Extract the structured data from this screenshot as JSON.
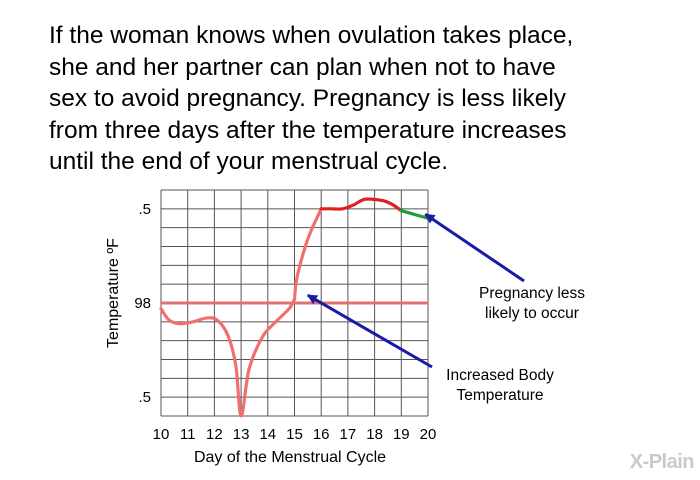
{
  "paragraph": {
    "line1": "If the woman knows when ovulation takes place,",
    "line2": "she and her partner can plan when not to have",
    "line3": "sex to avoid pregnancy. Pregnancy is less likely",
    "line4": "from three days after the temperature increases",
    "line5": "until the end of your menstrual cycle."
  },
  "chart_data": {
    "type": "line",
    "xlabel": "Day of the Menstrual Cycle",
    "ylabel": "Temperature ºF",
    "x_ticks": [
      "10",
      "11",
      "12",
      "13",
      "14",
      "15",
      "16",
      "17",
      "18",
      "19",
      "20"
    ],
    "y_ticks": [
      ".5",
      "98",
      ".5"
    ],
    "xlim": [
      10,
      20
    ],
    "ylim": [
      97.4,
      98.6
    ],
    "grid": true,
    "baseline": {
      "y": 98.0,
      "color": "#e07070"
    },
    "series": [
      {
        "segment": "before-increase",
        "color": "#f07070",
        "x": [
          10,
          10.3,
          10.7,
          11.2,
          11.7,
          12.1,
          12.5,
          12.8,
          13.0,
          13.3,
          13.8,
          14.3,
          14.8,
          15.0
        ],
        "y": [
          97.97,
          97.91,
          97.89,
          97.9,
          97.92,
          97.91,
          97.83,
          97.67,
          97.4,
          97.65,
          97.82,
          97.9,
          97.97,
          98.02
        ]
      },
      {
        "segment": "increased-body-temperature",
        "color": "#f07070",
        "x": [
          15.0,
          15.1,
          15.5,
          16.0
        ],
        "y": [
          98.02,
          98.14,
          98.34,
          98.5
        ]
      },
      {
        "segment": "high-temperature",
        "color": "#e02020",
        "x": [
          16.0,
          16.4,
          16.8,
          17.2,
          17.6,
          18.0,
          18.4,
          18.7,
          19.0
        ],
        "y": [
          98.5,
          98.5,
          98.5,
          98.52,
          98.55,
          98.55,
          98.54,
          98.52,
          98.49
        ]
      },
      {
        "segment": "pregnancy-less-likely",
        "color": "#1c9c3c",
        "x": [
          19.0,
          19.5,
          20.0
        ],
        "y": [
          98.49,
          98.47,
          98.45
        ]
      }
    ],
    "annotations": [
      {
        "lines": [
          "Pregnancy less",
          "likely to occur"
        ],
        "arrow_to": {
          "x": 19.6,
          "y": 98.45
        }
      },
      {
        "lines": [
          "Increased Body",
          "Temperature"
        ],
        "arrow_to": {
          "x": 15.2,
          "y": 98.02
        }
      }
    ]
  },
  "logo": {
    "text": "X-Plain"
  }
}
